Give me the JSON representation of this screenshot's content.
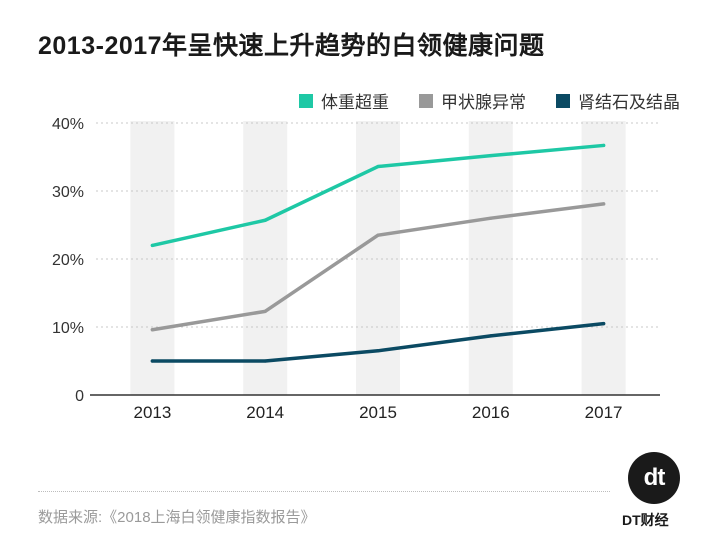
{
  "chart_data": {
    "type": "line",
    "title": "2013-2017年呈快速上升趋势的白领健康问题",
    "xlabel": "",
    "ylabel": "",
    "categories": [
      "2013",
      "2014",
      "2015",
      "2016",
      "2017"
    ],
    "ylim": [
      0,
      40
    ],
    "yticks": [
      0,
      10,
      20,
      30,
      40
    ],
    "ytick_labels": [
      "0",
      "10%",
      "20%",
      "30%",
      "40%"
    ],
    "grid": "horizontal dotted",
    "legend_position": "top-right",
    "series": [
      {
        "name": "体重超重",
        "color": "#1ec8a5",
        "values": [
          22.0,
          25.7,
          33.6,
          35.2,
          36.7
        ]
      },
      {
        "name": "甲状腺异常",
        "color": "#999999",
        "values": [
          9.6,
          12.3,
          23.5,
          26.0,
          28.1
        ]
      },
      {
        "name": "肾结石及结晶",
        "color": "#0b4a63",
        "values": [
          5.0,
          5.0,
          6.5,
          8.7,
          10.5
        ]
      }
    ]
  },
  "source": "数据来源:《2018上海白领健康指数报告》",
  "brand": {
    "logo": "dt",
    "name": "DT财经"
  }
}
